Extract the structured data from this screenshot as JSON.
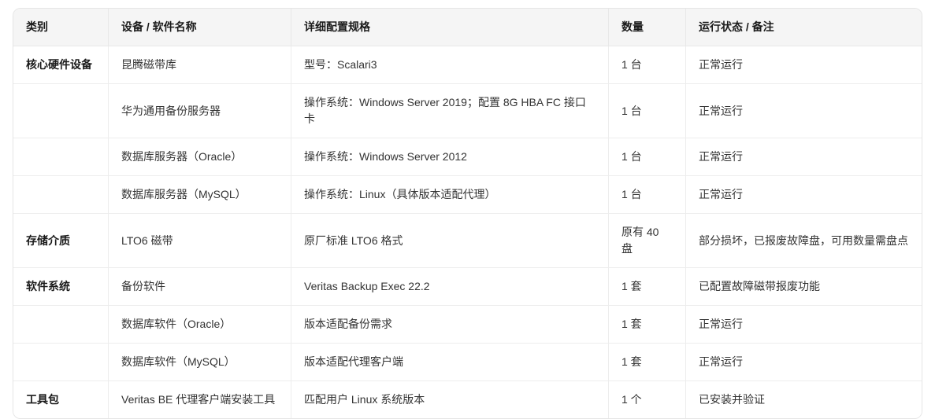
{
  "colors": {
    "header_bg": "#f5f5f5",
    "border_outer": "#e5e5e5",
    "border_inner": "#ededed",
    "header_text": "#1a1a1a",
    "body_text": "#333333",
    "page_bg": "#ffffff"
  },
  "table": {
    "columns": [
      "类别",
      "设备 / 软件名称",
      "详细配置规格",
      "数量",
      "运行状态 / 备注"
    ],
    "rows": [
      {
        "category": "核心硬件设备",
        "name": "昆腾磁带库",
        "spec": "型号：Scalari3",
        "qty": "1 台",
        "status": "正常运行"
      },
      {
        "category": "",
        "name": "华为通用备份服务器",
        "spec": "操作系统：Windows Server 2019；配置 8G HBA FC 接口卡",
        "qty": "1 台",
        "status": "正常运行"
      },
      {
        "category": "",
        "name": "数据库服务器（Oracle）",
        "spec": "操作系统：Windows Server 2012",
        "qty": "1 台",
        "status": "正常运行"
      },
      {
        "category": "",
        "name": "数据库服务器（MySQL）",
        "spec": "操作系统：Linux（具体版本适配代理）",
        "qty": "1 台",
        "status": "正常运行"
      },
      {
        "category": "存储介质",
        "name": "LTO6 磁带",
        "spec": "原厂标准 LTO6 格式",
        "qty": "原有 40 盘",
        "status": "部分损坏，已报废故障盘，可用数量需盘点"
      },
      {
        "category": "软件系统",
        "name": "备份软件",
        "spec": "Veritas Backup Exec 22.2",
        "qty": "1 套",
        "status": "已配置故障磁带报废功能"
      },
      {
        "category": "",
        "name": "数据库软件（Oracle）",
        "spec": "版本适配备份需求",
        "qty": "1 套",
        "status": "正常运行"
      },
      {
        "category": "",
        "name": "数据库软件（MySQL）",
        "spec": "版本适配代理客户端",
        "qty": "1 套",
        "status": "正常运行"
      },
      {
        "category": "工具包",
        "name": "Veritas BE 代理客户端安装工具",
        "spec": "匹配用户 Linux 系统版本",
        "qty": "1 个",
        "status": "已安装并验证"
      }
    ]
  }
}
